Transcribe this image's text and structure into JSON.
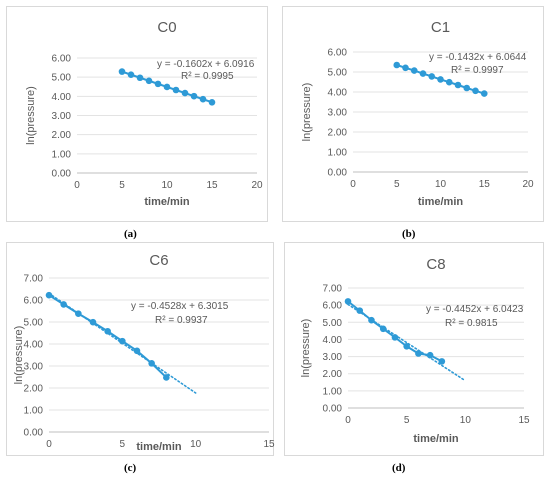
{
  "chart_data": [
    {
      "type": "scatter",
      "title": "C0",
      "panel_label": "(a)",
      "xlabel": "time/min",
      "ylabel": "ln(pressure)",
      "xlim": [
        0,
        20
      ],
      "ylim": [
        0,
        6
      ],
      "xticks": [
        "0",
        "5",
        "10",
        "15",
        "20"
      ],
      "yticks": [
        "0.00",
        "1.00",
        "2.00",
        "3.00",
        "4.00",
        "5.00",
        "6.00"
      ],
      "grid": true,
      "series": [
        {
          "x": [
            5,
            6,
            7,
            8,
            9,
            10,
            11,
            12,
            13,
            14,
            15
          ],
          "y": [
            5.29,
            5.13,
            4.97,
            4.81,
            4.65,
            4.49,
            4.33,
            4.17,
            4.01,
            3.85,
            3.69
          ]
        }
      ],
      "trendline": {
        "slope": -0.1602,
        "intercept": 6.0916,
        "x_range": [
          5,
          15
        ]
      },
      "equation": "y = -0.1602x + 6.0916",
      "r2": "R² = 0.9995",
      "color": "#2e9ad6"
    },
    {
      "type": "scatter",
      "title": "C1",
      "panel_label": "(b)",
      "xlabel": "time/min",
      "ylabel": "ln(pressure)",
      "xlim": [
        0,
        20
      ],
      "ylim": [
        0,
        6
      ],
      "xticks": [
        "0",
        "5",
        "10",
        "15",
        "20"
      ],
      "yticks": [
        "0.00",
        "1.00",
        "2.00",
        "3.00",
        "4.00",
        "5.00",
        "6.00"
      ],
      "grid": true,
      "series": [
        {
          "x": [
            5,
            6,
            7,
            8,
            9,
            10,
            11,
            12,
            13,
            14,
            15
          ],
          "y": [
            5.35,
            5.21,
            5.07,
            4.92,
            4.78,
            4.63,
            4.49,
            4.35,
            4.2,
            4.06,
            3.92
          ]
        }
      ],
      "trendline": {
        "slope": -0.1432,
        "intercept": 6.0644,
        "x_range": [
          5,
          15
        ]
      },
      "equation": "y = -0.1432x + 6.0644",
      "r2": "R² = 0.9997",
      "color": "#2e9ad6"
    },
    {
      "type": "scatter",
      "title": "C6",
      "panel_label": "(c)",
      "xlabel": "time/min",
      "ylabel": "ln(pressure)",
      "xlim": [
        0,
        15
      ],
      "ylim": [
        0,
        7
      ],
      "xticks": [
        "0",
        "5",
        "10",
        "15"
      ],
      "yticks": [
        "0.00",
        "1.00",
        "2.00",
        "3.00",
        "4.00",
        "5.00",
        "6.00",
        "7.00"
      ],
      "grid": true,
      "series": [
        {
          "x": [
            0,
            1,
            2,
            3,
            4,
            5,
            6,
            7,
            8
          ],
          "y": [
            6.22,
            5.8,
            5.38,
            4.99,
            4.58,
            4.13,
            3.69,
            3.12,
            2.48
          ]
        }
      ],
      "trendline": {
        "slope": -0.4528,
        "intercept": 6.3015,
        "x_range": [
          0,
          10
        ]
      },
      "equation": "y = -0.4528x + 6.3015",
      "r2": "R² = 0.9937",
      "color": "#2e9ad6"
    },
    {
      "type": "scatter",
      "title": "C8",
      "panel_label": "(d)",
      "xlabel": "time/min",
      "ylabel": "ln(pressure)",
      "xlim": [
        0,
        15
      ],
      "ylim": [
        0,
        7
      ],
      "xticks": [
        "0",
        "5",
        "10",
        "15"
      ],
      "yticks": [
        "0.00",
        "1.00",
        "2.00",
        "3.00",
        "4.00",
        "5.00",
        "6.00",
        "7.00"
      ],
      "grid": true,
      "series": [
        {
          "x": [
            0,
            1,
            2,
            3,
            4,
            5,
            6,
            7,
            8
          ],
          "y": [
            6.22,
            5.68,
            5.12,
            4.62,
            4.12,
            3.6,
            3.18,
            3.08,
            2.72
          ]
        }
      ],
      "trendline": {
        "slope": -0.4452,
        "intercept": 6.0423,
        "x_range": [
          0,
          10
        ]
      },
      "equation": "y = -0.4452x + 6.0423",
      "r2": "R² = 0.9815",
      "color": "#2e9ad6"
    }
  ]
}
